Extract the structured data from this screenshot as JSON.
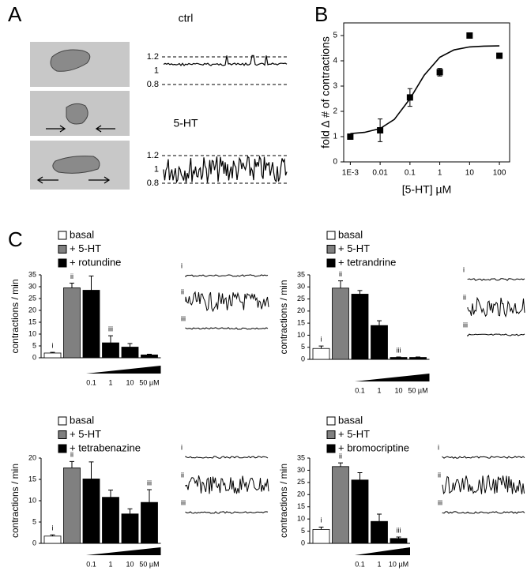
{
  "figure": {
    "panel_labels": [
      "A",
      "B",
      "C"
    ]
  },
  "chart_data": [
    {
      "type": "trace",
      "title": "ctrl",
      "ylim": [
        0.7,
        1.3
      ],
      "yticks": [
        1.2,
        1,
        0.8
      ]
    },
    {
      "type": "trace",
      "title": "5-HT",
      "ylim": [
        0.7,
        1.3
      ],
      "yticks": [
        1.2,
        1,
        0.8
      ]
    },
    {
      "type": "scatter",
      "x_label": "[5-HT] µM",
      "y_label": "fold ∆ # of contractions",
      "log_x": true,
      "x": [
        0.001,
        0.01,
        0.1,
        1,
        10,
        100
      ],
      "values": [
        1.0,
        1.25,
        2.55,
        3.55,
        5.0,
        4.2
      ],
      "errors": [
        0.05,
        0.45,
        0.35,
        0.15,
        0.1,
        0.05
      ],
      "curve_x": [
        0.001,
        0.003,
        0.01,
        0.03,
        0.1,
        0.3,
        1,
        3,
        10,
        30,
        100
      ],
      "curve_values": [
        1.12,
        1.17,
        1.32,
        1.68,
        2.5,
        3.43,
        4.14,
        4.43,
        4.55,
        4.58,
        4.59
      ],
      "xlim": [
        0.0006,
        220
      ],
      "ylim": [
        0,
        5.5
      ],
      "xticks": [
        {
          "value": 0.001,
          "label": "1E-3"
        },
        0.01,
        0.1,
        1,
        10,
        100
      ],
      "yticks": [
        0,
        1,
        2,
        3,
        4,
        5
      ],
      "color": "#000000"
    },
    {
      "type": "bar",
      "y_label": "contractions / min",
      "legend": [
        {
          "label": "basal",
          "color": "#ffffff"
        },
        {
          "label": "+ 5-HT",
          "color": "#808080"
        },
        {
          "label": "+ rotundine",
          "color": "#000000"
        }
      ],
      "categories": [
        null,
        null,
        "0.1",
        "1",
        "10",
        "50 µM"
      ],
      "values": [
        2,
        29.5,
        28.5,
        6.3,
        4.5,
        1.2
      ],
      "errors": [
        0.3,
        2,
        6,
        3,
        1.5,
        0.3
      ],
      "colors": [
        "#ffffff",
        "#808080",
        "#000000",
        "#000000",
        "#000000",
        "#000000"
      ],
      "bar_labels": [
        "i",
        "ii",
        null,
        "iii",
        null,
        null
      ],
      "trace_labels": [
        "i",
        "ii",
        "iii"
      ],
      "ylim": [
        0,
        35
      ],
      "yticks": [
        0,
        5,
        10,
        15,
        20,
        25,
        30,
        35
      ]
    },
    {
      "type": "bar",
      "y_label": "contractions / min",
      "legend": [
        {
          "label": "basal",
          "color": "#ffffff"
        },
        {
          "label": "+ 5-HT",
          "color": "#808080"
        },
        {
          "label": "+ tetrandrine",
          "color": "#000000"
        }
      ],
      "categories": [
        null,
        null,
        "0.1",
        "1",
        "10",
        "50 µM"
      ],
      "values": [
        4.5,
        29.5,
        27,
        14,
        0.8,
        0.8
      ],
      "errors": [
        1,
        3,
        1.5,
        2,
        0.2,
        0.2
      ],
      "colors": [
        "#ffffff",
        "#808080",
        "#000000",
        "#000000",
        "#000000",
        "#000000"
      ],
      "bar_labels": [
        "i",
        "ii",
        null,
        null,
        "iii",
        null
      ],
      "trace_labels": [
        "i",
        "ii",
        "iii"
      ],
      "ylim": [
        0,
        35
      ],
      "yticks": [
        0,
        5,
        10,
        15,
        20,
        25,
        30,
        35
      ]
    },
    {
      "type": "bar",
      "y_label": "contractions / min",
      "legend": [
        {
          "label": "basal",
          "color": "#ffffff"
        },
        {
          "label": "+ 5-HT",
          "color": "#808080"
        },
        {
          "label": "+ tetrabenazine",
          "color": "#000000"
        }
      ],
      "categories": [
        null,
        null,
        "0.1",
        "1",
        "10",
        "50 µM"
      ],
      "values": [
        1.7,
        17.7,
        15.1,
        10.8,
        6.9,
        9.6
      ],
      "errors": [
        0.3,
        1.5,
        4,
        1.7,
        1.2,
        3
      ],
      "colors": [
        "#ffffff",
        "#808080",
        "#000000",
        "#000000",
        "#000000",
        "#000000"
      ],
      "bar_labels": [
        "i",
        "ii",
        null,
        null,
        null,
        "iii"
      ],
      "trace_labels": [
        "i",
        "ii",
        "iii"
      ],
      "ylim": [
        0,
        20
      ],
      "yticks": [
        0,
        5,
        10,
        15,
        20
      ]
    },
    {
      "type": "bar",
      "y_label": "contractions / min",
      "legend": [
        {
          "label": "basal",
          "color": "#ffffff"
        },
        {
          "label": "+ 5-HT",
          "color": "#808080"
        },
        {
          "label": "+ bromocriptine",
          "color": "#000000"
        }
      ],
      "categories": [
        null,
        null,
        "0.1",
        "1",
        "10 µM"
      ],
      "values": [
        5.7,
        31.5,
        26,
        9,
        2
      ],
      "errors": [
        1,
        1.5,
        3,
        3,
        0.6
      ],
      "colors": [
        "#ffffff",
        "#808080",
        "#000000",
        "#000000",
        "#000000"
      ],
      "bar_labels": [
        "i",
        "ii",
        null,
        null,
        "iii"
      ],
      "trace_labels": [
        "i",
        "ii",
        "iii"
      ],
      "ylim": [
        0,
        35
      ],
      "yticks": [
        0,
        5,
        10,
        15,
        20,
        25,
        30,
        35
      ]
    }
  ]
}
